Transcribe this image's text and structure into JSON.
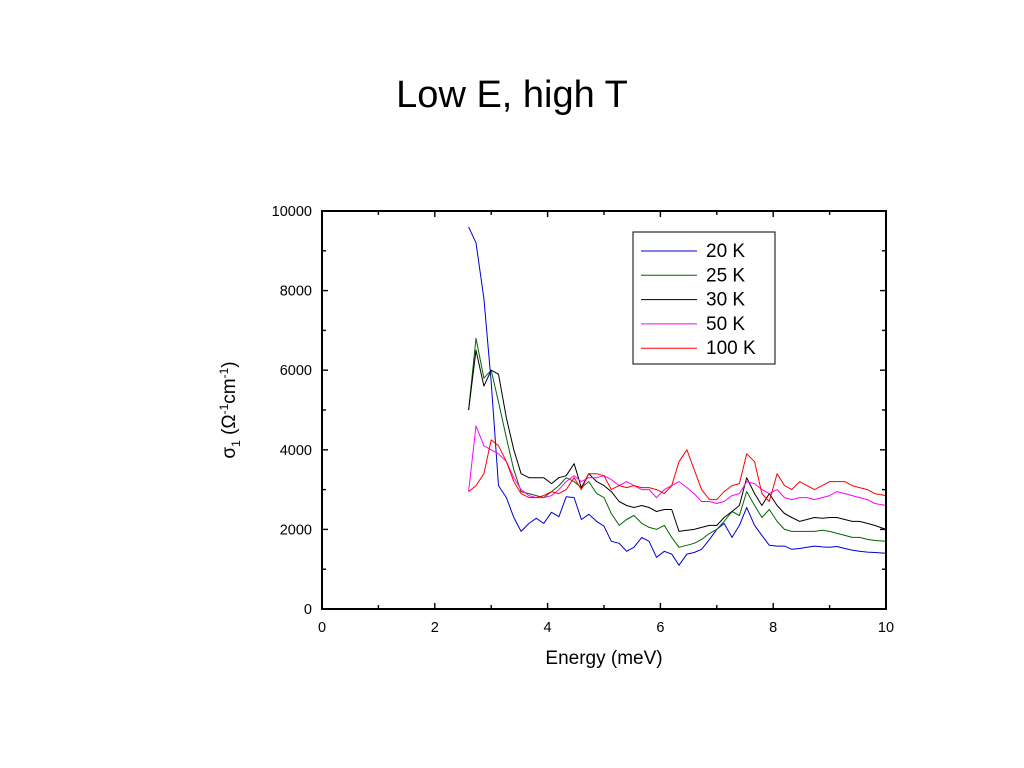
{
  "slide": {
    "title": "Low E, high T"
  },
  "chart_data": {
    "type": "line",
    "title": "",
    "xlabel": "Energy (meV)",
    "ylabel_main": "σ",
    "ylabel_sub": "1",
    "ylabel_units": [
      {
        "t": " (Ω",
        "sup": false
      },
      {
        "t": "-1",
        "sup": true
      },
      {
        "t": "cm",
        "sup": false
      },
      {
        "t": "-1",
        "sup": true
      },
      {
        "t": ")",
        "sup": false
      }
    ],
    "xlim": [
      0,
      10
    ],
    "ylim": [
      0,
      10000
    ],
    "xticks": [
      "0",
      "2",
      "4",
      "6",
      "8",
      "10"
    ],
    "yticks": [
      "0",
      "2000",
      "4000",
      "6000",
      "8000",
      "10000"
    ],
    "grid": false,
    "legend_position": "top-right",
    "series": [
      {
        "name": "20 K",
        "color": "#0000cc",
        "x": [
          2.6,
          2.73,
          2.87,
          3.0,
          3.13,
          3.27,
          3.4,
          3.53,
          3.67,
          3.8,
          3.93,
          4.07,
          4.2,
          4.33,
          4.47,
          4.6,
          4.73,
          4.87,
          5.0,
          5.13,
          5.27,
          5.4,
          5.53,
          5.67,
          5.8,
          5.93,
          6.07,
          6.2,
          6.33,
          6.47,
          6.6,
          6.73,
          6.87,
          7.0,
          7.13,
          7.27,
          7.4,
          7.53,
          7.67,
          7.8,
          7.93,
          8.07,
          8.2,
          8.33,
          8.47,
          8.6,
          8.73,
          8.87,
          9.0,
          9.13,
          9.27,
          9.4,
          9.53,
          9.67,
          9.8,
          10.0
        ],
        "y": [
          9600,
          9200,
          7800,
          5700,
          3100,
          2800,
          2300,
          1950,
          2150,
          2280,
          2150,
          2430,
          2320,
          2820,
          2800,
          2250,
          2380,
          2200,
          2080,
          1700,
          1650,
          1450,
          1550,
          1800,
          1700,
          1300,
          1450,
          1380,
          1100,
          1380,
          1420,
          1500,
          1750,
          2000,
          2150,
          1800,
          2100,
          2550,
          2100,
          1850,
          1600,
          1580,
          1580,
          1500,
          1520,
          1550,
          1580,
          1560,
          1550,
          1570,
          1520,
          1480,
          1450,
          1430,
          1420,
          1400
        ]
      },
      {
        "name": "25 K",
        "color": "#006600",
        "x": [
          2.6,
          2.73,
          2.87,
          3.0,
          3.13,
          3.27,
          3.4,
          3.53,
          3.67,
          3.8,
          3.93,
          4.07,
          4.2,
          4.33,
          4.47,
          4.6,
          4.73,
          4.87,
          5.0,
          5.13,
          5.27,
          5.4,
          5.53,
          5.67,
          5.8,
          5.93,
          6.07,
          6.2,
          6.33,
          6.47,
          6.6,
          6.73,
          6.87,
          7.0,
          7.13,
          7.27,
          7.4,
          7.53,
          7.67,
          7.8,
          7.93,
          8.07,
          8.2,
          8.33,
          8.47,
          8.6,
          8.73,
          8.87,
          9.0,
          9.13,
          9.27,
          9.4,
          9.53,
          9.67,
          9.8,
          10.0
        ],
        "y": [
          5000,
          6800,
          5800,
          6000,
          5200,
          4300,
          3500,
          2950,
          2900,
          2850,
          2800,
          2950,
          3100,
          3300,
          3200,
          3050,
          3200,
          2900,
          2800,
          2400,
          2100,
          2250,
          2350,
          2150,
          2050,
          2000,
          2100,
          1800,
          1550,
          1600,
          1650,
          1750,
          1900,
          2000,
          2200,
          2450,
          2350,
          2950,
          2600,
          2300,
          2500,
          2200,
          2000,
          1950,
          1950,
          1950,
          1950,
          1980,
          1950,
          1900,
          1850,
          1800,
          1800,
          1750,
          1720,
          1700
        ]
      },
      {
        "name": "30 K",
        "color": "#000000",
        "x": [
          2.6,
          2.73,
          2.87,
          3.0,
          3.13,
          3.27,
          3.4,
          3.53,
          3.67,
          3.8,
          3.93,
          4.07,
          4.2,
          4.33,
          4.47,
          4.6,
          4.73,
          4.87,
          5.0,
          5.13,
          5.27,
          5.4,
          5.53,
          5.67,
          5.8,
          5.93,
          6.07,
          6.2,
          6.33,
          6.47,
          6.6,
          6.73,
          6.87,
          7.0,
          7.13,
          7.27,
          7.4,
          7.53,
          7.67,
          7.8,
          7.93,
          8.07,
          8.2,
          8.33,
          8.47,
          8.6,
          8.73,
          8.87,
          9.0,
          9.13,
          9.27,
          9.4,
          9.53,
          9.67,
          9.8,
          10.0
        ],
        "y": [
          5000,
          6500,
          5600,
          6000,
          5900,
          4800,
          4000,
          3400,
          3300,
          3300,
          3300,
          3150,
          3300,
          3350,
          3650,
          3050,
          3400,
          3200,
          3100,
          2950,
          2700,
          2600,
          2550,
          2600,
          2550,
          2450,
          2500,
          2500,
          1950,
          1980,
          2000,
          2050,
          2100,
          2100,
          2300,
          2450,
          2600,
          3300,
          2900,
          2600,
          2900,
          2600,
          2400,
          2300,
          2200,
          2250,
          2300,
          2280,
          2300,
          2300,
          2250,
          2200,
          2200,
          2150,
          2100,
          2000
        ]
      },
      {
        "name": "50 K",
        "color": "#ff00ff",
        "x": [
          2.6,
          2.73,
          2.87,
          3.0,
          3.13,
          3.27,
          3.4,
          3.53,
          3.67,
          3.8,
          3.93,
          4.07,
          4.2,
          4.33,
          4.47,
          4.6,
          4.73,
          4.87,
          5.0,
          5.13,
          5.27,
          5.4,
          5.53,
          5.67,
          5.8,
          5.93,
          6.07,
          6.2,
          6.33,
          6.47,
          6.6,
          6.73,
          6.87,
          7.0,
          7.13,
          7.27,
          7.4,
          7.53,
          7.67,
          7.8,
          7.93,
          8.07,
          8.2,
          8.33,
          8.47,
          8.6,
          8.73,
          8.87,
          9.0,
          9.13,
          9.27,
          9.4,
          9.53,
          9.67,
          9.8,
          10.0
        ],
        "y": [
          2950,
          4600,
          4100,
          4000,
          3900,
          3700,
          3300,
          3000,
          2850,
          2800,
          2800,
          2850,
          3000,
          3200,
          3350,
          3200,
          3300,
          3300,
          3350,
          3250,
          3100,
          3200,
          3100,
          3000,
          3000,
          2800,
          3000,
          3100,
          3200,
          3050,
          2900,
          2700,
          2700,
          2650,
          2700,
          2850,
          2900,
          3200,
          3150,
          3000,
          2900,
          3000,
          2800,
          2750,
          2800,
          2800,
          2750,
          2800,
          2850,
          2950,
          2900,
          2850,
          2800,
          2750,
          2650,
          2600
        ]
      },
      {
        "name": "100 K",
        "color": "#ff0000",
        "x": [
          2.6,
          2.73,
          2.87,
          3.0,
          3.13,
          3.27,
          3.4,
          3.53,
          3.67,
          3.8,
          3.93,
          4.07,
          4.2,
          4.33,
          4.47,
          4.6,
          4.73,
          4.87,
          5.0,
          5.13,
          5.27,
          5.4,
          5.53,
          5.67,
          5.8,
          5.93,
          6.07,
          6.2,
          6.33,
          6.47,
          6.6,
          6.73,
          6.87,
          7.0,
          7.13,
          7.27,
          7.4,
          7.53,
          7.67,
          7.8,
          7.93,
          8.07,
          8.2,
          8.33,
          8.47,
          8.6,
          8.73,
          8.87,
          9.0,
          9.13,
          9.27,
          9.4,
          9.53,
          9.67,
          9.8,
          10.0
        ],
        "y": [
          2950,
          3100,
          3400,
          4250,
          4100,
          3700,
          3200,
          2900,
          2800,
          2800,
          2850,
          2950,
          2900,
          3000,
          3300,
          3000,
          3400,
          3400,
          3350,
          3000,
          3100,
          3050,
          3100,
          3050,
          3050,
          3000,
          2900,
          3100,
          3700,
          4000,
          3500,
          3000,
          2750,
          2750,
          2950,
          3100,
          3150,
          3900,
          3700,
          2900,
          2700,
          3400,
          3100,
          3000,
          3200,
          3100,
          3000,
          3100,
          3200,
          3200,
          3200,
          3100,
          3050,
          3000,
          2900,
          2850
        ]
      }
    ]
  }
}
